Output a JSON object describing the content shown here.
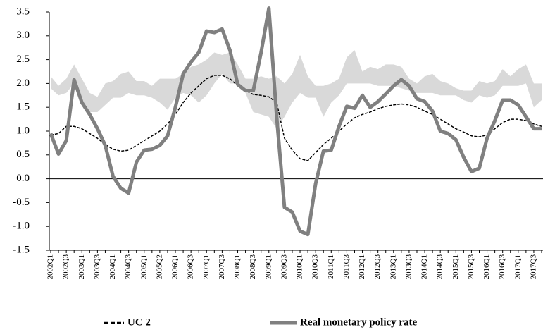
{
  "chart_data": {
    "type": "line",
    "categories": [
      "2002Q1",
      null,
      "2002Q3",
      null,
      "2003Q1",
      null,
      "2003Q3",
      null,
      "2004Q1",
      null,
      "2004Q3",
      null,
      "2005Q1",
      null,
      "2005Q2",
      null,
      "2006Q1",
      null,
      "2006Q3",
      null,
      "2007Q1",
      null,
      "2007Q3",
      null,
      "2008Q1",
      null,
      "2008Q3",
      null,
      "2009Q1",
      null,
      "2009Q3",
      null,
      "2010Q1",
      null,
      "2010Q3",
      null,
      "2011Q1",
      null,
      "2011Q3",
      null,
      "2012Q1",
      null,
      "2012Q3",
      null,
      "2013Q1",
      null,
      "2013Q3",
      null,
      "2014Q1",
      null,
      "2014Q3",
      null,
      "2015Q1",
      null,
      "2015Q3",
      null,
      "2016Q1",
      null,
      "2016Q3",
      null,
      "2017Q1",
      null,
      "2017Q3",
      null
    ],
    "band": {
      "color": "#d9d9d9",
      "upper": [
        2.15,
        1.95,
        2.1,
        2.4,
        2.1,
        1.8,
        1.72,
        2.0,
        2.05,
        2.2,
        2.25,
        2.05,
        2.05,
        1.95,
        2.1,
        2.1,
        2.1,
        2.2,
        2.35,
        2.4,
        2.5,
        2.65,
        2.6,
        2.65,
        2.4,
        2.1,
        2.1,
        2.15,
        2.1,
        2.15,
        2.0,
        2.2,
        2.6,
        2.15,
        1.95,
        1.95,
        2.0,
        2.1,
        2.55,
        2.7,
        2.25,
        2.35,
        2.3,
        2.4,
        2.4,
        2.35,
        2.1,
        2.0,
        2.15,
        2.2,
        2.05,
        2.0,
        1.9,
        1.85,
        1.85,
        2.05,
        2.0,
        2.05,
        2.3,
        2.15,
        2.3,
        2.4,
        2.0,
        2.0
      ],
      "lower": [
        1.9,
        1.75,
        1.8,
        2.0,
        1.6,
        1.4,
        1.4,
        1.55,
        1.7,
        1.7,
        1.8,
        1.75,
        1.75,
        1.7,
        1.6,
        1.45,
        1.7,
        1.8,
        1.75,
        1.6,
        1.75,
        2.0,
        2.2,
        2.0,
        2.0,
        1.8,
        1.4,
        1.35,
        1.3,
        1.05,
        1.3,
        1.6,
        1.8,
        1.7,
        1.7,
        1.3,
        1.6,
        1.75,
        2.0,
        2.0,
        2.0,
        2.0,
        1.95,
        1.95,
        1.95,
        1.9,
        1.85,
        1.8,
        1.8,
        1.8,
        1.75,
        1.75,
        1.75,
        1.65,
        1.6,
        1.75,
        1.7,
        1.75,
        1.95,
        1.95,
        1.95,
        2.0,
        1.5,
        1.65
      ]
    },
    "series": [
      {
        "name": "UC 2",
        "color": "#000000",
        "dashed": true,
        "values": [
          0.92,
          0.95,
          1.1,
          1.1,
          1.05,
          0.95,
          0.85,
          0.72,
          0.62,
          0.58,
          0.6,
          0.7,
          0.8,
          0.9,
          1.0,
          1.15,
          1.35,
          1.6,
          1.8,
          1.95,
          2.1,
          2.17,
          2.17,
          2.1,
          1.95,
          1.85,
          1.77,
          1.75,
          1.72,
          1.6,
          0.85,
          0.6,
          0.42,
          0.38,
          0.55,
          0.72,
          0.85,
          1.0,
          1.15,
          1.28,
          1.35,
          1.4,
          1.47,
          1.52,
          1.55,
          1.57,
          1.55,
          1.5,
          1.42,
          1.35,
          1.25,
          1.15,
          1.05,
          0.98,
          0.9,
          0.88,
          0.92,
          1.05,
          1.18,
          1.25,
          1.25,
          1.22,
          1.15,
          1.1
        ]
      },
      {
        "name": "Real monetary policy rate",
        "color": "#808080",
        "dashed": false,
        "values": [
          0.95,
          0.52,
          0.8,
          2.08,
          1.6,
          1.35,
          1.05,
          0.7,
          0.05,
          -0.2,
          -0.3,
          0.35,
          0.6,
          0.62,
          0.7,
          0.9,
          1.5,
          2.2,
          2.45,
          2.65,
          3.1,
          3.07,
          3.14,
          2.7,
          1.98,
          1.85,
          1.85,
          2.65,
          3.58,
          1.3,
          -0.6,
          -0.7,
          -1.1,
          -1.17,
          -0.1,
          0.58,
          0.6,
          1.1,
          1.52,
          1.48,
          1.75,
          1.5,
          1.62,
          1.78,
          1.95,
          2.08,
          1.95,
          1.68,
          1.62,
          1.42,
          1.0,
          0.95,
          0.82,
          0.45,
          0.15,
          0.22,
          0.85,
          1.22,
          1.65,
          1.65,
          1.55,
          1.3,
          1.05,
          1.05
        ]
      }
    ],
    "ylim": [
      -1.5,
      3.5
    ],
    "yticks": [
      {
        "value": -1.5,
        "label": "-1.5"
      },
      {
        "value": -1,
        "label": "-1.0"
      },
      -0.5,
      {
        "value": 0,
        "label": "0.0"
      },
      0.5,
      {
        "value": 1,
        "label": "1.0"
      },
      1.5,
      {
        "value": 2,
        "label": "2.0"
      },
      2.5,
      {
        "value": 3,
        "label": "3.0"
      },
      3.5
    ]
  }
}
